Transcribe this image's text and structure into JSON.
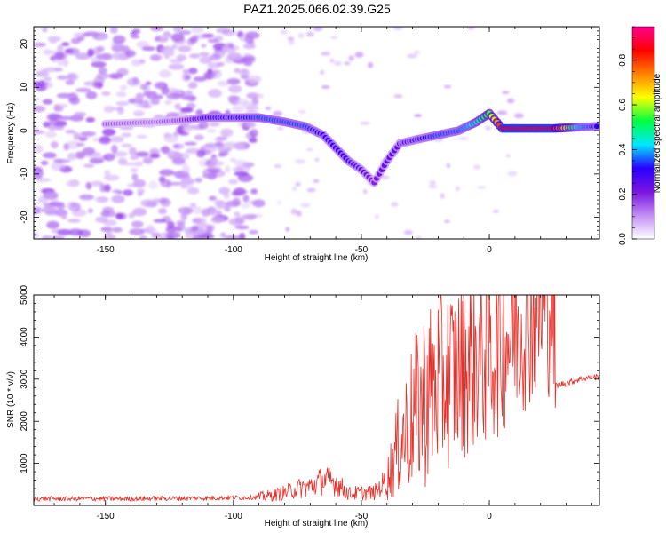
{
  "title": "PAZ1.2025.066.02.39.G25",
  "chart_data": [
    {
      "type": "heatmap",
      "title": "PAZ1.2025.066.02.39.G25",
      "xlabel": "Height of straight line (km)",
      "ylabel": "Frequency (Hz)",
      "xlim": [
        -178,
        43
      ],
      "ylim": [
        -25,
        24
      ],
      "xticks": [
        -150,
        -100,
        -50,
        0
      ],
      "yticks": [
        -20,
        -10,
        0,
        10,
        20
      ],
      "colorbar": {
        "label": "Normalized spectral amplitude",
        "range": [
          0,
          0.95
        ],
        "ticks": [
          0.0,
          0.2,
          0.4,
          0.6,
          0.8
        ],
        "colors": [
          "#ffffff",
          "#c18ef5",
          "#7a14e0",
          "#2a00ff",
          "#00e8ff",
          "#00ff40",
          "#ffff00",
          "#ff8000",
          "#ff0000",
          "#ff0090"
        ]
      },
      "noise_region_x": [
        -178,
        -90
      ],
      "ridge": [
        {
          "x": -150,
          "f": 1.5,
          "a": 0.15
        },
        {
          "x": -130,
          "f": 2.0,
          "a": 0.14
        },
        {
          "x": -118,
          "f": 2.5,
          "a": 0.2
        },
        {
          "x": -110,
          "f": 3.0,
          "a": 0.3
        },
        {
          "x": -100,
          "f": 3.0,
          "a": 0.3
        },
        {
          "x": -90,
          "f": 3.0,
          "a": 0.35
        },
        {
          "x": -80,
          "f": 2.0,
          "a": 0.35
        },
        {
          "x": -72,
          "f": 1.0,
          "a": 0.35
        },
        {
          "x": -65,
          "f": -1.0,
          "a": 0.3
        },
        {
          "x": -60,
          "f": -4.0,
          "a": 0.3
        },
        {
          "x": -55,
          "f": -7.0,
          "a": 0.3
        },
        {
          "x": -50,
          "f": -9.0,
          "a": 0.25
        },
        {
          "x": -45,
          "f": -12.0,
          "a": 0.2
        },
        {
          "x": -40,
          "f": -7.0,
          "a": 0.25
        },
        {
          "x": -35,
          "f": -3.0,
          "a": 0.25
        },
        {
          "x": -28,
          "f": -2.0,
          "a": 0.3
        },
        {
          "x": -20,
          "f": -1.0,
          "a": 0.35
        },
        {
          "x": -12,
          "f": 0.0,
          "a": 0.35
        },
        {
          "x": -5,
          "f": 2.0,
          "a": 0.45
        },
        {
          "x": 0,
          "f": 4.0,
          "a": 0.55
        },
        {
          "x": 5,
          "f": 0.5,
          "a": 0.85
        },
        {
          "x": 15,
          "f": 0.5,
          "a": 0.85
        },
        {
          "x": 25,
          "f": 0.5,
          "a": 0.85
        },
        {
          "x": 35,
          "f": 0.8,
          "a": 0.4
        },
        {
          "x": 43,
          "f": 1.0,
          "a": 0.3
        }
      ]
    },
    {
      "type": "line",
      "xlabel": "Height of straight line (km)",
      "ylabel": "SNR (10 * v/v)",
      "xlim": [
        -178,
        43
      ],
      "ylim": [
        0,
        5000
      ],
      "xticks": [
        -150,
        -100,
        -50,
        0
      ],
      "yticks": [
        1000,
        2000,
        3000,
        4000,
        5000
      ],
      "color": "#e8302a",
      "series": [
        {
          "x": [
            -178,
            -170,
            -160,
            -150,
            -140,
            -130,
            -120,
            -110,
            -100,
            -95,
            -90,
            -85,
            -80,
            -75,
            -70,
            -65,
            -60,
            -55,
            -50,
            -45,
            -40,
            -35,
            -30,
            -25,
            -20,
            -15,
            -10,
            -5,
            0,
            5,
            10,
            15,
            20,
            25,
            26,
            30,
            35,
            40,
            43
          ],
          "y": [
            160,
            160,
            160,
            160,
            160,
            165,
            170,
            175,
            185,
            190,
            200,
            240,
            300,
            400,
            450,
            600,
            550,
            280,
            300,
            300,
            600,
            1500,
            2100,
            2600,
            2900,
            3100,
            3300,
            3500,
            3600,
            3900,
            4200,
            4500,
            4700,
            4800,
            2850,
            2900,
            3000,
            3050,
            3050
          ]
        }
      ]
    }
  ]
}
